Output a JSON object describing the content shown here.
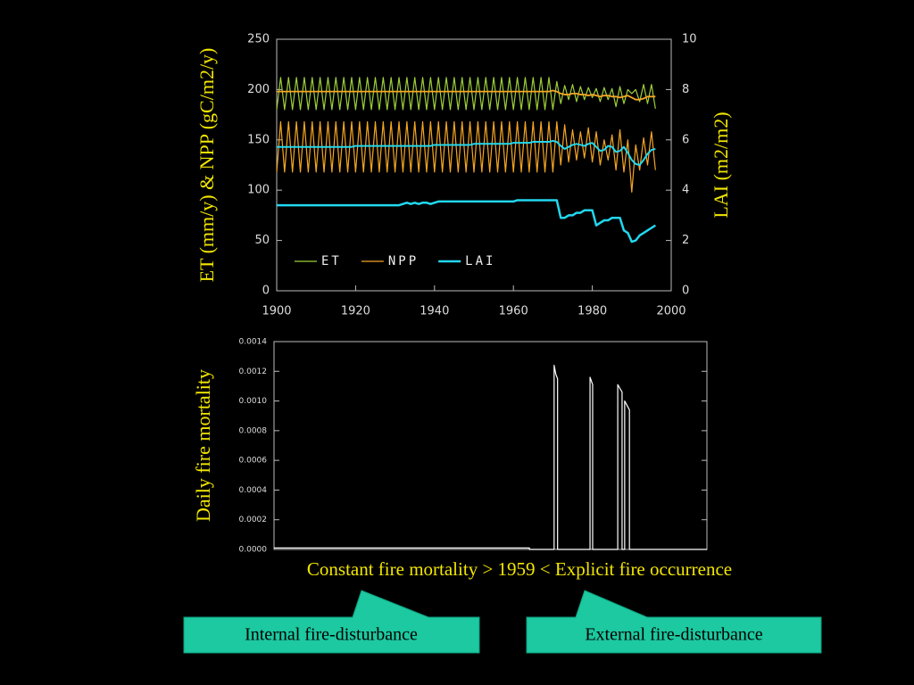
{
  "chart_data": [
    {
      "type": "line",
      "ylabel": "ET (mm/y) & NPP (gC/m2/y)",
      "y2label": "LAI (m2/m2)",
      "x": [
        1900,
        1901,
        1902,
        1903,
        1904,
        1905,
        1906,
        1907,
        1908,
        1909,
        1910,
        1911,
        1912,
        1913,
        1914,
        1915,
        1916,
        1917,
        1918,
        1919,
        1920,
        1921,
        1922,
        1923,
        1924,
        1925,
        1926,
        1927,
        1928,
        1929,
        1930,
        1931,
        1932,
        1933,
        1934,
        1935,
        1936,
        1937,
        1938,
        1939,
        1940,
        1941,
        1942,
        1943,
        1944,
        1945,
        1946,
        1947,
        1948,
        1949,
        1950,
        1951,
        1952,
        1953,
        1954,
        1955,
        1956,
        1957,
        1958,
        1959,
        1960,
        1961,
        1962,
        1963,
        1964,
        1965,
        1966,
        1967,
        1968,
        1969,
        1970,
        1971,
        1972,
        1973,
        1974,
        1975,
        1976,
        1977,
        1978,
        1979,
        1980,
        1981,
        1982,
        1983,
        1984,
        1985,
        1986,
        1987,
        1988,
        1989,
        1990,
        1991,
        1992,
        1993,
        1994,
        1995,
        1996
      ],
      "xlim": [
        1900,
        2000
      ],
      "xticks": [
        1900,
        1920,
        1940,
        1960,
        1980,
        2000
      ],
      "ylim": [
        0,
        250
      ],
      "yticks": [
        0,
        50,
        100,
        150,
        200,
        250
      ],
      "y2lim": [
        0,
        10
      ],
      "y2ticks": [
        0,
        2,
        4,
        6,
        8,
        10
      ],
      "legend": "lower left",
      "series": [
        {
          "name": "ET",
          "color": "#9ccf3a",
          "values": [
            180,
            212,
            180,
            212,
            180,
            212,
            180,
            212,
            180,
            212,
            180,
            212,
            180,
            212,
            180,
            212,
            180,
            212,
            180,
            212,
            180,
            212,
            180,
            212,
            180,
            212,
            180,
            212,
            180,
            212,
            180,
            212,
            180,
            212,
            180,
            212,
            180,
            212,
            180,
            212,
            180,
            212,
            180,
            212,
            180,
            212,
            180,
            212,
            180,
            212,
            180,
            212,
            180,
            212,
            180,
            212,
            180,
            212,
            180,
            212,
            180,
            212,
            180,
            212,
            180,
            212,
            180,
            212,
            180,
            212,
            180,
            208,
            186,
            204,
            190,
            205,
            188,
            203,
            190,
            202,
            192,
            201,
            188,
            202,
            190,
            201,
            183,
            203,
            186,
            200,
            196,
            200,
            188,
            205,
            186,
            205,
            181
          ]
        },
        {
          "name": "NPP",
          "color": "#f5a623",
          "values": [
            118,
            168,
            118,
            168,
            118,
            168,
            118,
            168,
            118,
            168,
            118,
            168,
            118,
            168,
            118,
            168,
            118,
            168,
            118,
            168,
            118,
            168,
            118,
            168,
            118,
            168,
            118,
            168,
            118,
            168,
            118,
            168,
            118,
            168,
            118,
            168,
            118,
            168,
            118,
            168,
            118,
            168,
            118,
            168,
            118,
            168,
            118,
            168,
            118,
            168,
            118,
            168,
            118,
            168,
            118,
            168,
            118,
            168,
            118,
            168,
            118,
            168,
            118,
            168,
            118,
            168,
            118,
            168,
            118,
            168,
            118,
            168,
            125,
            165,
            128,
            160,
            130,
            158,
            132,
            162,
            128,
            158,
            125,
            150,
            130,
            155,
            120,
            160,
            118,
            150,
            98,
            145,
            120,
            152,
            125,
            158,
            120
          ]
        },
        {
          "name": "LAI",
          "color": "#22d8f0",
          "axis": "y2",
          "values": [
            3.4,
            3.4,
            3.4,
            3.4,
            3.4,
            3.4,
            3.4,
            3.4,
            3.4,
            3.4,
            3.4,
            3.4,
            3.4,
            3.4,
            3.4,
            3.4,
            3.4,
            3.4,
            3.4,
            3.4,
            3.4,
            3.4,
            3.4,
            3.4,
            3.4,
            3.4,
            3.4,
            3.4,
            3.4,
            3.4,
            3.4,
            3.4,
            3.45,
            3.5,
            3.45,
            3.5,
            3.45,
            3.5,
            3.5,
            3.45,
            3.5,
            3.55,
            3.55,
            3.55,
            3.55,
            3.55,
            3.55,
            3.55,
            3.55,
            3.55,
            3.55,
            3.55,
            3.55,
            3.55,
            3.55,
            3.55,
            3.55,
            3.55,
            3.55,
            3.55,
            3.55,
            3.6,
            3.6,
            3.6,
            3.6,
            3.6,
            3.6,
            3.6,
            3.6,
            3.6,
            3.6,
            3.6,
            2.9,
            2.9,
            3.0,
            3.0,
            3.1,
            3.1,
            3.2,
            3.2,
            3.2,
            2.6,
            2.7,
            2.8,
            2.8,
            2.9,
            2.9,
            2.9,
            2.4,
            2.3,
            1.95,
            2.0,
            2.2,
            2.3,
            2.4,
            2.5,
            2.6
          ]
        },
        {
          "color": "#f5a623",
          "values": [
            198,
            198,
            198,
            198,
            198,
            198,
            198,
            198,
            198,
            198,
            198,
            198,
            198,
            198,
            198,
            198,
            198,
            198,
            198,
            198,
            198,
            198,
            198,
            198,
            198,
            198,
            198,
            198,
            198,
            198,
            198,
            198,
            198,
            198,
            198,
            198,
            198,
            198,
            198,
            198,
            198,
            198,
            198,
            198,
            198,
            198,
            198,
            198,
            198,
            198,
            198,
            198,
            198,
            198,
            198,
            198,
            198,
            198,
            198,
            198,
            198,
            198,
            198,
            198,
            198,
            198,
            198,
            198,
            198,
            198,
            199,
            198,
            196,
            195,
            195,
            196,
            196,
            195,
            195,
            194,
            195,
            194,
            193,
            194,
            194,
            193,
            193,
            192,
            193,
            194,
            192,
            190,
            190,
            191,
            193,
            193,
            193
          ]
        },
        {
          "color": "#22d8f0",
          "values": [
            143,
            143,
            143,
            143,
            143,
            143,
            143,
            143,
            143,
            143,
            143,
            143,
            143,
            143,
            143,
            143,
            143,
            143,
            143,
            143,
            144,
            144,
            144,
            144,
            144,
            144,
            144,
            144,
            144,
            144,
            144,
            144,
            144,
            144,
            144,
            144,
            144,
            144,
            144,
            144,
            145,
            145,
            145,
            145,
            145,
            145,
            145,
            145,
            145,
            145,
            146,
            146,
            146,
            146,
            146,
            146,
            146,
            146,
            146,
            146,
            147,
            147,
            147,
            147,
            147,
            148,
            148,
            148,
            148,
            148,
            149,
            148,
            144,
            141,
            143,
            145,
            146,
            145,
            144,
            146,
            147,
            143,
            139,
            140,
            144,
            143,
            138,
            139,
            143,
            137,
            130,
            126,
            125,
            130,
            136,
            140,
            141
          ]
        }
      ]
    },
    {
      "type": "line",
      "ylabel": "Daily fire mortality",
      "x": [
        1900,
        1959,
        1959,
        1964.7,
        1964.7,
        1965.1,
        1965.5,
        1965.5,
        1973.0,
        1973.0,
        1973.6,
        1973.6,
        1979.4,
        1979.4,
        1980.4,
        1980.4,
        1981.0,
        1981.0,
        1982.1,
        1982.1,
        2000
      ],
      "xlim": [
        1900,
        2000
      ],
      "ylim": [
        0,
        0.0014
      ],
      "yticks": [
        {
          "value": 0,
          "label": "0.0000"
        },
        {
          "value": 0.0002,
          "label": "0.0002"
        },
        {
          "value": 0.0004,
          "label": "0.0004"
        },
        {
          "value": 0.0006,
          "label": "0.0006"
        },
        {
          "value": 0.0008,
          "label": "0.0008"
        },
        {
          "value": 0.001,
          "label": "0.0010"
        },
        {
          "value": 0.0012,
          "label": "0.0012"
        },
        {
          "value": 0.0014,
          "label": "0.0014"
        }
      ],
      "series": [
        {
          "color": "#ffffff",
          "values": [
            1e-05,
            1e-05,
            0,
            0,
            0.00124,
            0.00118,
            0.00115,
            0,
            0,
            0.00116,
            0.00111,
            0,
            0,
            0.00111,
            0.00106,
            0,
            0,
            0.001,
            0.00094,
            0,
            0
          ]
        }
      ]
    }
  ],
  "caption": "Constant fire mortality > 1959 < Explicit fire occurrence",
  "callouts": [
    "Internal fire-disturbance",
    "External fire-disturbance"
  ]
}
